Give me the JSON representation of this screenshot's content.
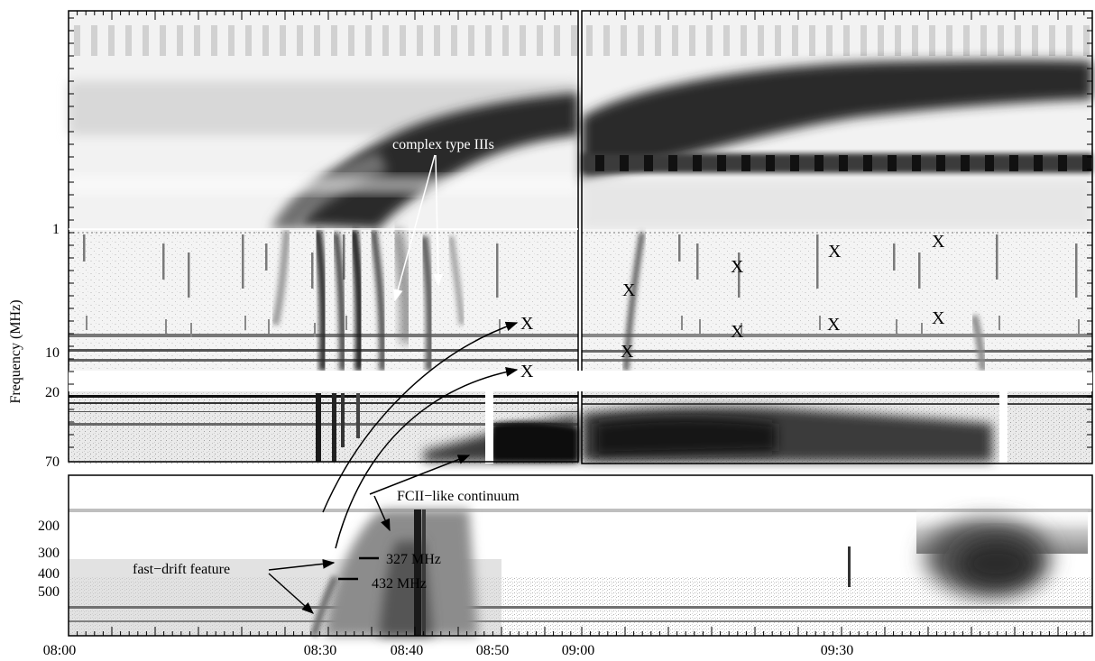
{
  "chart_data": {
    "type": "heatmap",
    "xlabel": "",
    "ylabel": "Frequency (MHz)",
    "x_ticks": [
      "08:00",
      "08:30",
      "08:40",
      "08:50",
      "09:00",
      "09:30"
    ],
    "y_ticks_upper": [
      "1",
      "10"
    ],
    "y_ticks_middle": [
      "20",
      "70"
    ],
    "y_ticks_lower": [
      "200",
      "300",
      "400",
      "500"
    ],
    "colormap": "inverted grayscale",
    "annotations": [
      {
        "text": "complex type IIIs",
        "color": "#ffffff"
      },
      {
        "text": "FCII−like continuum",
        "color": "#000000"
      },
      {
        "text": "fast−drift feature",
        "color": "#000000"
      },
      {
        "text": "327 MHz",
        "color": "#000000"
      },
      {
        "text": "432 MHz",
        "color": "#000000"
      },
      {
        "text": "X",
        "color": "#000000"
      }
    ]
  }
}
